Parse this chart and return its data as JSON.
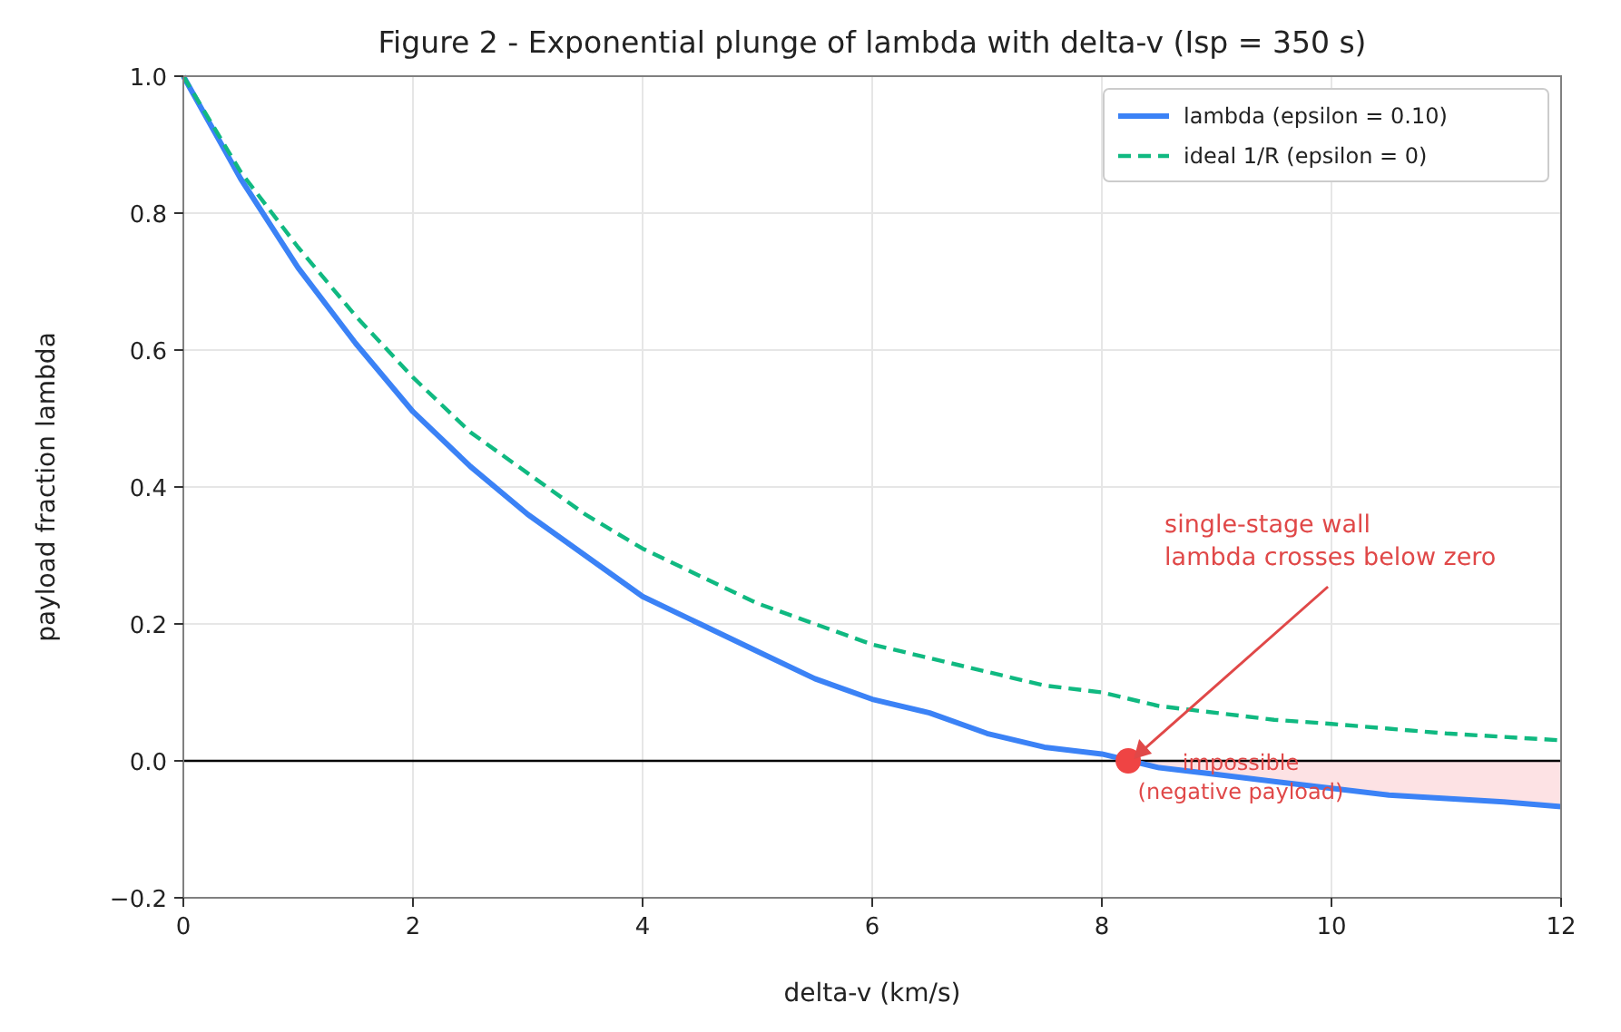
{
  "chart_data": {
    "type": "line",
    "title": "Figure 2 - Exponential plunge of lambda with delta-v  (Isp = 350 s)",
    "xlabel": "delta-v  (km/s)",
    "ylabel": "payload fraction  lambda",
    "x": [
      0,
      0.5,
      1,
      1.5,
      2,
      2.5,
      3,
      3.5,
      4,
      4.5,
      5,
      5.5,
      6,
      6.5,
      7,
      7.5,
      8,
      8.5,
      9,
      9.5,
      10,
      10.5,
      11,
      11.5,
      12
    ],
    "series": [
      {
        "type": "area",
        "color": "#fde2e4",
        "x": [
          8.23,
          8.5,
          9,
          9.5,
          10,
          10.5,
          11,
          11.5,
          12
        ],
        "values": [
          0,
          -0.01,
          -0.02,
          -0.03,
          -0.04,
          -0.05,
          -0.055,
          -0.06,
          -0.067
        ]
      },
      {
        "name": "lambda (epsilon = 0.10)",
        "color": "#3b82f6",
        "line_style": "solid",
        "values": [
          1,
          0.85,
          0.72,
          0.61,
          0.51,
          0.43,
          0.36,
          0.3,
          0.24,
          0.2,
          0.16,
          0.12,
          0.09,
          0.07,
          0.04,
          0.02,
          0.01,
          -0.01,
          -0.02,
          -0.03,
          -0.04,
          -0.05,
          -0.055,
          -0.06,
          -0.067
        ]
      },
      {
        "name": "ideal 1/R (epsilon = 0)",
        "color": "#10b981",
        "line_style": "dashed",
        "values": [
          1,
          0.86,
          0.75,
          0.65,
          0.56,
          0.48,
          0.42,
          0.36,
          0.31,
          0.27,
          0.23,
          0.2,
          0.17,
          0.15,
          0.13,
          0.11,
          0.1,
          0.08,
          0.07,
          0.06,
          0.054,
          0.047,
          0.04,
          0.035,
          0.03
        ]
      },
      {
        "type": "scatter",
        "color": "#ef4444",
        "marker": "circle",
        "x": [
          8.23
        ],
        "values": [
          0
        ]
      }
    ],
    "xlim": [
      0,
      12
    ],
    "xticks": [
      0,
      2,
      4,
      6,
      8,
      10,
      12
    ],
    "ylim": [
      -0.2,
      1
    ],
    "yticks": [
      {
        "value": -0.2,
        "label": "−0.2"
      },
      {
        "value": 0,
        "label": "0.0"
      },
      {
        "value": 0.2,
        "label": "0.2"
      },
      {
        "value": 0.4,
        "label": "0.4"
      },
      {
        "value": 0.6,
        "label": "0.6"
      },
      {
        "value": 0.8,
        "label": "0.8"
      },
      {
        "value": 1,
        "label": "1.0"
      }
    ],
    "ref_lines": [
      {
        "axis": "y",
        "value": 0,
        "color": "#000000"
      }
    ],
    "annotations": [
      {
        "text": "single-stage wall\nlambda crosses below zero",
        "x": 8.23,
        "y": 0
      },
      {
        "text": "impossible\n(negative payload)",
        "x": 10,
        "y": 0
      }
    ],
    "grid": true,
    "legend": "top right"
  }
}
